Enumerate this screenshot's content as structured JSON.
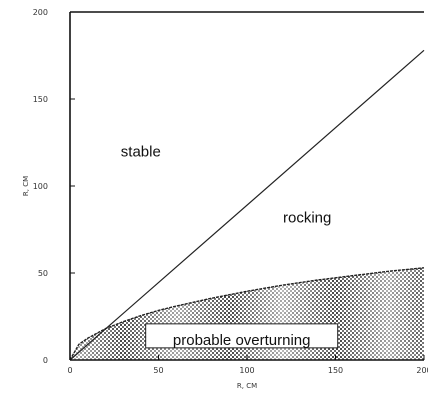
{
  "chart_data": {
    "type": "line",
    "xlabel": "R, CM",
    "ylabel": "R, CM",
    "xlim": [
      0,
      200
    ],
    "ylim": [
      0,
      200
    ],
    "x_ticks": [
      0,
      50,
      100,
      150,
      200
    ],
    "x_tick_labels": [
      "0",
      "50",
      "100",
      "150",
      "200"
    ],
    "y_ticks": [
      0,
      50,
      100,
      150,
      200
    ],
    "y_tick_labels": [
      "0",
      "50",
      "100",
      "150",
      "200"
    ],
    "grid": false,
    "series": [
      {
        "x": [
          0,
          200
        ],
        "y": [
          0,
          178
        ]
      },
      {
        "x": [
          0,
          5,
          10,
          20,
          30,
          40,
          50,
          60,
          80,
          100,
          120,
          140,
          160,
          180,
          200
        ],
        "y": [
          0,
          9,
          12.5,
          18,
          22,
          25.5,
          28.5,
          31,
          35.5,
          39.5,
          43,
          46,
          48.5,
          51,
          53
        ],
        "fill_below": true
      }
    ],
    "annotations": [
      {
        "text": "stable",
        "x": 40,
        "y": 117,
        "boxed": false
      },
      {
        "text": "rocking",
        "x": 134,
        "y": 79,
        "boxed": false
      },
      {
        "text": "probable overturning",
        "x": 97,
        "y": 11,
        "boxed": true
      }
    ]
  }
}
